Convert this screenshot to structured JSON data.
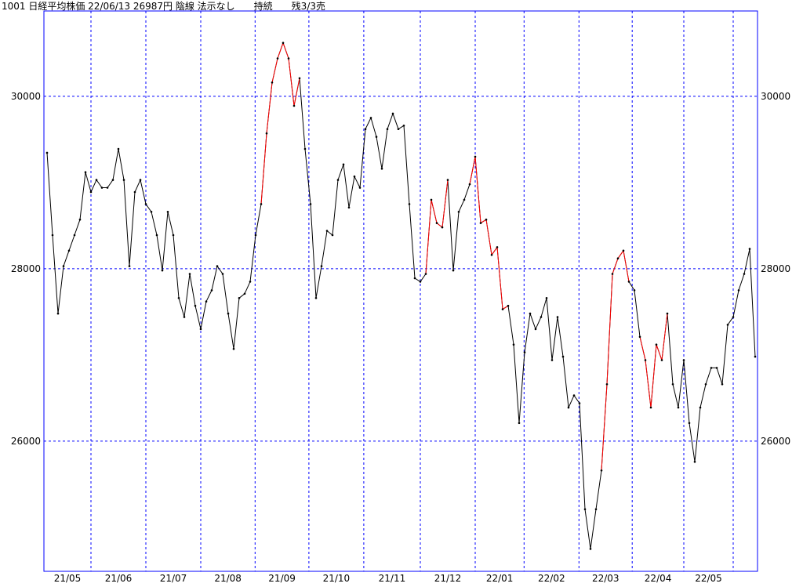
{
  "chart_data": {
    "type": "line",
    "title": "1001 日経平均株価 22/06/13 26987円 陰線 法示なし　　持続　　残3/3売",
    "values": [
      29345,
      28390,
      27480,
      28030,
      28210,
      28390,
      28570,
      29120,
      28890,
      29030,
      28940,
      28940,
      29030,
      29390,
      29030,
      28030,
      28890,
      29030,
      28750,
      28660,
      28390,
      27980,
      28660,
      28390,
      27660,
      27440,
      27940,
      27570,
      27300,
      27620,
      27750,
      28030,
      27940,
      27480,
      27070,
      27660,
      27710,
      27850,
      28390,
      28750,
      29570,
      30160,
      30440,
      30620,
      30440,
      29890,
      30210,
      29390,
      28750,
      27660,
      28030,
      28440,
      28390,
      29030,
      29210,
      28710,
      29070,
      28940,
      29620,
      29750,
      29530,
      29160,
      29620,
      29800,
      29620,
      29660,
      28750,
      27890,
      27850,
      27940,
      28800,
      28530,
      28480,
      29030,
      27980,
      28660,
      28800,
      28980,
      29300,
      28530,
      28570,
      28160,
      28250,
      27530,
      27570,
      27120,
      26210,
      27030,
      27480,
      27300,
      27440,
      27660,
      26940,
      27440,
      26980,
      26390,
      26530,
      26440,
      25210,
      24750,
      25210,
      25660,
      26660,
      27940,
      28120,
      28210,
      27850,
      27750,
      27210,
      26940,
      26390,
      27120,
      26940,
      27480,
      26660,
      26390,
      26940,
      26210,
      25760,
      26390,
      26660,
      26850,
      26850,
      26660,
      27350,
      27440,
      27750,
      27940,
      28230,
      26980
    ],
    "segment_colors": [
      "#000",
      "#000",
      "#000",
      "#000",
      "#000",
      "#000",
      "#000",
      "#000",
      "#000",
      "#000",
      "#000",
      "#000",
      "#000",
      "#000",
      "#000",
      "#000",
      "#000",
      "#000",
      "#000",
      "#000",
      "#000",
      "#000",
      "#000",
      "#000",
      "#000",
      "#000",
      "#000",
      "#000",
      "#000",
      "#000",
      "#000",
      "#000",
      "#000",
      "#000",
      "#000",
      "#000",
      "#000",
      "#000",
      "#000",
      "#000",
      "#f00",
      "#f00",
      "#f00",
      "#f00",
      "#f00",
      "#f00",
      "#f00",
      "#000",
      "#000",
      "#000",
      "#000",
      "#000",
      "#000",
      "#000",
      "#000",
      "#000",
      "#000",
      "#000",
      "#000",
      "#000",
      "#000",
      "#000",
      "#000",
      "#000",
      "#000",
      "#000",
      "#000",
      "#000",
      "#000",
      "#000",
      "#f00",
      "#f00",
      "#f00",
      "#f00",
      "#000",
      "#000",
      "#000",
      "#000",
      "#f00",
      "#f00",
      "#f00",
      "#f00",
      "#f00",
      "#f00",
      "#f00",
      "#000",
      "#000",
      "#000",
      "#000",
      "#000",
      "#000",
      "#000",
      "#000",
      "#000",
      "#000",
      "#000",
      "#000",
      "#000",
      "#000",
      "#000",
      "#000",
      "#000",
      "#f00",
      "#f00",
      "#f00",
      "#f00",
      "#f00",
      "#000",
      "#000",
      "#f00",
      "#f00",
      "#f00",
      "#f00",
      "#f00",
      "#000",
      "#000",
      "#000",
      "#000",
      "#000",
      "#000",
      "#000",
      "#000",
      "#000",
      "#000",
      "#000",
      "#000",
      "#000",
      "#000",
      "#000",
      "#000"
    ],
    "xlim": [
      0,
      129
    ],
    "xticks": [
      8,
      18,
      28,
      37.9,
      47.7,
      57.7,
      68,
      78,
      86.9,
      96.9,
      106.6,
      116,
      125
    ],
    "x_labels": [
      "21/05",
      "21/06",
      "21/07",
      "21/08",
      "21/09",
      "21/10",
      "21/11",
      "21/12",
      "22/01",
      "22/02",
      "22/03",
      "22/04",
      "22/05"
    ],
    "ylim": [
      24490,
      30990
    ],
    "yticks": [
      26000,
      28000,
      30000
    ],
    "grid": true,
    "grid_color": "#0000ff",
    "frame_color": "#0000ff",
    "point_color": "#000"
  }
}
